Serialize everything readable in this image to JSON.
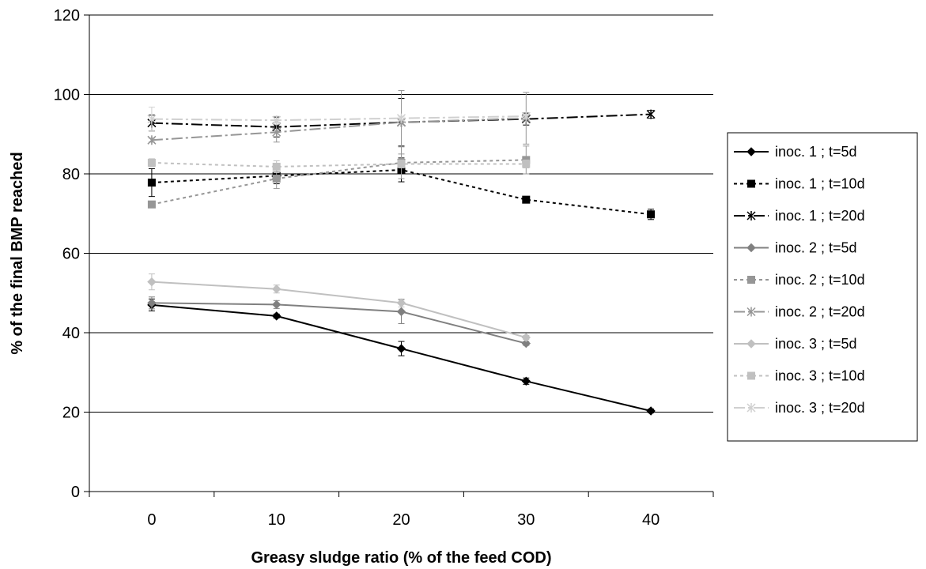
{
  "chart_data": {
    "type": "line",
    "xlabel": "Greasy sludge ratio (% of the feed COD)",
    "ylabel": "% of the final BMP reached",
    "x_ticks": [
      0,
      10,
      20,
      30,
      40
    ],
    "y_ticks": [
      0,
      20,
      40,
      60,
      80,
      100,
      120
    ],
    "xlim": [
      -5,
      45
    ],
    "ylim": [
      0,
      120
    ],
    "grid": "horizontal major gridlines",
    "legend_position": "right",
    "series": [
      {
        "name": "inoc. 1 ; t=5d",
        "color": "#000000",
        "dash": "",
        "marker": "diamond",
        "x": [
          0,
          10,
          20,
          30,
          40
        ],
        "y": [
          47.0,
          44.2,
          36.0,
          27.8,
          20.3
        ],
        "err": [
          1.5,
          0.5,
          1.8,
          0.8,
          0.5
        ]
      },
      {
        "name": "inoc. 1 ; t=10d",
        "color": "#000000",
        "dash": "4,4",
        "marker": "square",
        "x": [
          0,
          10,
          20,
          30,
          40
        ],
        "y": [
          77.8,
          79.5,
          81.0,
          73.5,
          69.8
        ],
        "err": [
          3.5,
          2.0,
          3.0,
          0.5,
          1.3
        ]
      },
      {
        "name": "inoc. 1 ; t=20d",
        "color": "#000000",
        "dash": "14,4,3,4",
        "marker": "star",
        "x": [
          0,
          10,
          20,
          30,
          40
        ],
        "y": [
          92.8,
          91.8,
          93.0,
          93.8,
          95.0
        ],
        "err": [
          2.0,
          2.5,
          6.0,
          1.5,
          1.0
        ]
      },
      {
        "name": "inoc. 2 ; t=5d",
        "color": "#808080",
        "dash": "",
        "marker": "diamond",
        "x": [
          0,
          10,
          20,
          30
        ],
        "y": [
          47.5,
          47.1,
          45.3,
          37.3
        ],
        "err": [
          1.5,
          1.0,
          3.0,
          0.5
        ]
      },
      {
        "name": "inoc. 2 ; t=10d",
        "color": "#969696",
        "dash": "4,4",
        "marker": "square",
        "x": [
          0,
          10,
          20,
          30
        ],
        "y": [
          72.3,
          78.8,
          82.8,
          83.5
        ],
        "err": [
          0.5,
          2.5,
          4.0,
          3.5
        ]
      },
      {
        "name": "inoc. 2 ; t=20d",
        "color": "#969696",
        "dash": "14,4,3,4",
        "marker": "star",
        "x": [
          0,
          10,
          20,
          30
        ],
        "y": [
          88.5,
          90.5,
          93.0,
          94.0
        ],
        "err": [
          0.5,
          2.5,
          8.0,
          6.5
        ]
      },
      {
        "name": "inoc. 3 ; t=5d",
        "color": "#c0c0c0",
        "dash": "",
        "marker": "diamond",
        "x": [
          0,
          10,
          20,
          30
        ],
        "y": [
          52.8,
          51.0,
          47.5,
          38.8
        ],
        "err": [
          2.0,
          1.0,
          1.0,
          0.5
        ]
      },
      {
        "name": "inoc. 3 ; t=10d",
        "color": "#c0c0c0",
        "dash": "4,4",
        "marker": "square",
        "x": [
          0,
          10,
          20,
          30
        ],
        "y": [
          82.8,
          81.8,
          82.5,
          82.5
        ],
        "err": [
          1.0,
          1.5,
          1.0,
          1.0
        ]
      },
      {
        "name": "inoc. 3 ; t=20d",
        "color": "#d0d0d0",
        "dash": "14,4,3,4",
        "marker": "star",
        "x": [
          0,
          10,
          20,
          30
        ],
        "y": [
          93.8,
          93.5,
          94.0,
          94.5
        ],
        "err": [
          3.0,
          1.0,
          0.5,
          0.5
        ]
      }
    ]
  }
}
